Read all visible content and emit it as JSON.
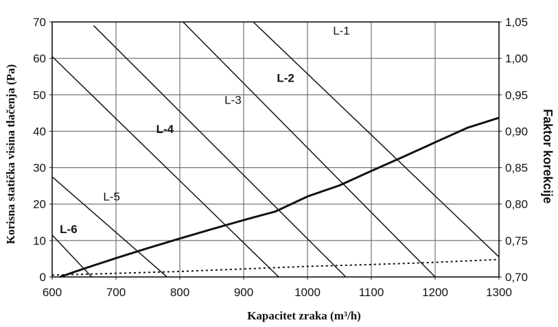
{
  "chart_data": {
    "type": "line",
    "xlabel": "Kapacitet zraka (m³/h)",
    "ylabel": "Korisna statička visina tlačenja (Pa)",
    "y2label": "Faktor korekcije",
    "xlim": [
      600,
      1300
    ],
    "ylim": [
      0,
      70
    ],
    "y2lim": [
      0.7,
      1.05
    ],
    "x_ticks": [
      "600",
      "700",
      "800",
      "900",
      "1000",
      "1100",
      "1200",
      "1300"
    ],
    "y_ticks": [
      "0",
      "10",
      "20",
      "30",
      "40",
      "50",
      "60",
      "70"
    ],
    "y2_ticks": [
      "0,70",
      "0,75",
      "0,80",
      "0,85",
      "0,90",
      "0,95",
      "1,00",
      "1,05"
    ],
    "grid": true,
    "series": [
      {
        "name": "L-1",
        "bold": false,
        "style": "solid",
        "axis": "left",
        "x": [
          915,
          1300
        ],
        "y": [
          70,
          5.5
        ]
      },
      {
        "name": "L-2",
        "bold": true,
        "style": "solid",
        "axis": "left",
        "x": [
          805,
          1200
        ],
        "y": [
          70,
          0
        ]
      },
      {
        "name": "L-3",
        "bold": false,
        "style": "solid",
        "axis": "left",
        "x": [
          665,
          1060
        ],
        "y": [
          69,
          0
        ]
      },
      {
        "name": "L-4",
        "bold": true,
        "style": "solid",
        "axis": "left",
        "x": [
          600,
          955
        ],
        "y": [
          60.5,
          0
        ]
      },
      {
        "name": "L-5",
        "bold": false,
        "style": "solid",
        "axis": "left",
        "x": [
          600,
          780
        ],
        "y": [
          27.5,
          0
        ]
      },
      {
        "name": "L-6",
        "bold": true,
        "style": "solid",
        "axis": "left",
        "x": [
          600,
          662
        ],
        "y": [
          11.5,
          0
        ]
      },
      {
        "name": "",
        "bold": false,
        "style": "thick",
        "axis": "right",
        "x": [
          612,
          650,
          700,
          750,
          800,
          850,
          900,
          950,
          1000,
          1050,
          1100,
          1150,
          1200,
          1250,
          1300
        ],
        "y": [
          0.7,
          0.7115,
          0.7258,
          0.7396,
          0.7528,
          0.7656,
          0.778,
          0.7899,
          0.8105,
          0.8256,
          0.8455,
          0.8648,
          0.8848,
          0.9045,
          0.9185
        ]
      },
      {
        "name": "",
        "bold": false,
        "style": "dotted",
        "axis": "left",
        "x": [
          600,
          700,
          800,
          900,
          1000,
          1100,
          1200,
          1300
        ],
        "y": [
          0.5,
          1.0,
          1.5,
          2.2,
          2.9,
          3.4,
          4.0,
          4.8
        ]
      }
    ],
    "annotations": [
      {
        "text": "L-1",
        "x": 1040,
        "y": 66.5,
        "bold": false
      },
      {
        "text": "L-2",
        "x": 952,
        "y": 53.5,
        "bold": true
      },
      {
        "text": "L-3",
        "x": 870,
        "y": 47.5,
        "bold": false
      },
      {
        "text": "L-4",
        "x": 763,
        "y": 39.5,
        "bold": true
      },
      {
        "text": "L-5",
        "x": 680,
        "y": 21.0,
        "bold": false
      },
      {
        "text": "L-6",
        "x": 612,
        "y": 12.0,
        "bold": true
      }
    ]
  }
}
